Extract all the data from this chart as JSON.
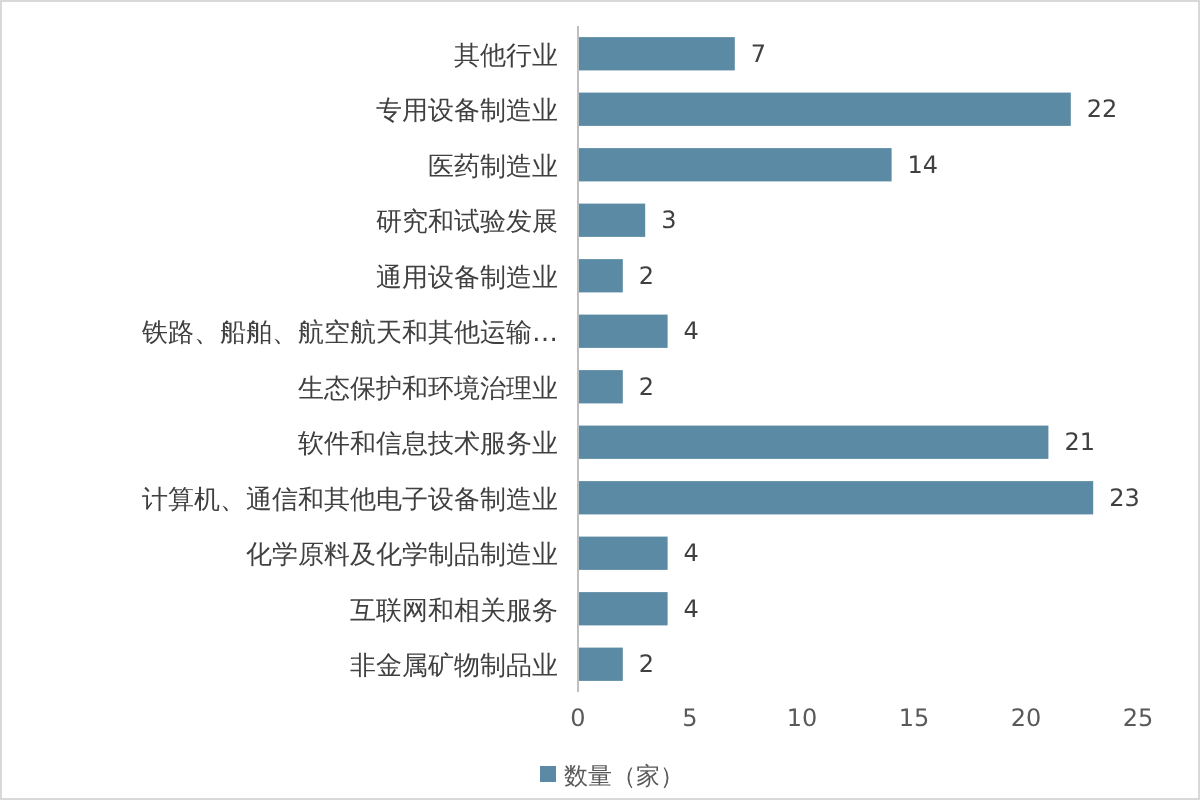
{
  "chart_data": {
    "type": "bar",
    "orientation": "horizontal",
    "categories": [
      "其他行业",
      "专用设备制造业",
      "医药制造业",
      "研究和试验发展",
      "通用设备制造业",
      "铁路、船舶、航空航天和其他运输…",
      "生态保护和环境治理业",
      "软件和信息技术服务业",
      "计算机、通信和其他电子设备制造业",
      "化学原料及化学制品制造业",
      "互联网和相关服务",
      "非金属矿物制品业"
    ],
    "series": [
      {
        "name": "数量（家）",
        "color": "#5b8ba4",
        "values": [
          7,
          22,
          14,
          3,
          2,
          4,
          2,
          21,
          23,
          4,
          4,
          2
        ]
      }
    ],
    "xlim": [
      0,
      25
    ],
    "xticks": [
      0,
      5,
      10,
      15,
      20,
      25
    ],
    "data_labels": true,
    "legend": "bottom"
  }
}
